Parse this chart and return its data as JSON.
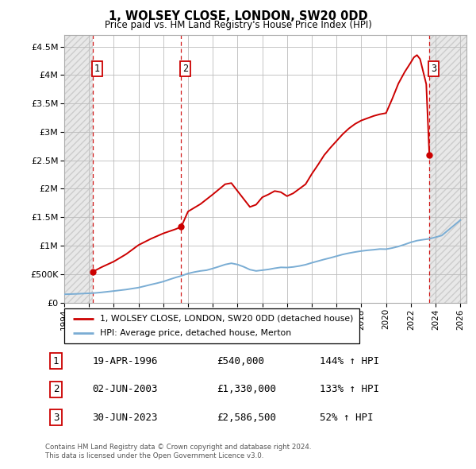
{
  "title": "1, WOLSEY CLOSE, LONDON, SW20 0DD",
  "subtitle": "Price paid vs. HM Land Registry's House Price Index (HPI)",
  "legend_line1": "1, WOLSEY CLOSE, LONDON, SW20 0DD (detached house)",
  "legend_line2": "HPI: Average price, detached house, Merton",
  "footer1": "Contains HM Land Registry data © Crown copyright and database right 2024.",
  "footer2": "This data is licensed under the Open Government Licence v3.0.",
  "sales": [
    {
      "num": 1,
      "date": "19-APR-1996",
      "price": 540000,
      "price_str": "£540,000",
      "pct": "144%",
      "dir": "↑"
    },
    {
      "num": 2,
      "date": "02-JUN-2003",
      "price": 1330000,
      "price_str": "£1,330,000",
      "pct": "133%",
      "dir": "↑"
    },
    {
      "num": 3,
      "date": "30-JUN-2023",
      "price": 2586500,
      "price_str": "£2,586,500",
      "pct": "52%",
      "dir": "↑"
    }
  ],
  "sale_years": [
    1996.3,
    2003.45,
    2023.5
  ],
  "sale_prices": [
    540000,
    1330000,
    2586500
  ],
  "hpi_color": "#7aadd4",
  "price_color": "#cc0000",
  "vline_color": "#cc0000",
  "ylim": [
    0,
    4700000
  ],
  "yticks": [
    0,
    500000,
    1000000,
    1500000,
    2000000,
    2500000,
    3000000,
    3500000,
    4000000,
    4500000
  ],
  "ytick_labels": [
    "£0",
    "£500K",
    "£1M",
    "£1.5M",
    "£2M",
    "£2.5M",
    "£3M",
    "£3.5M",
    "£4M",
    "£4.5M"
  ],
  "xlim_start": 1994.0,
  "xlim_end": 2026.5,
  "hatch_color": "#d8d8d8",
  "grid_color": "#bbbbbb",
  "hpi_data": {
    "years": [
      1994.0,
      1994.5,
      1995.0,
      1995.5,
      1996.0,
      1996.3,
      1996.5,
      1997.0,
      1997.5,
      1998.0,
      1998.5,
      1999.0,
      1999.5,
      2000.0,
      2000.5,
      2001.0,
      2001.5,
      2002.0,
      2002.5,
      2003.0,
      2003.45,
      2003.5,
      2004.0,
      2004.5,
      2005.0,
      2005.5,
      2006.0,
      2006.5,
      2007.0,
      2007.5,
      2008.0,
      2008.5,
      2009.0,
      2009.5,
      2010.0,
      2010.5,
      2011.0,
      2011.5,
      2012.0,
      2012.5,
      2013.0,
      2013.5,
      2014.0,
      2014.5,
      2015.0,
      2015.5,
      2016.0,
      2016.5,
      2017.0,
      2017.5,
      2018.0,
      2018.5,
      2019.0,
      2019.5,
      2020.0,
      2020.5,
      2021.0,
      2021.5,
      2022.0,
      2022.5,
      2023.0,
      2023.5,
      2024.0,
      2024.5,
      2025.0,
      2025.5,
      2026.0
    ],
    "values": [
      145000,
      148000,
      152000,
      157000,
      162000,
      165000,
      168000,
      178000,
      190000,
      202000,
      215000,
      228000,
      245000,
      262000,
      288000,
      315000,
      340000,
      368000,
      405000,
      440000,
      468000,
      472000,
      510000,
      535000,
      555000,
      568000,
      598000,
      632000,
      668000,
      690000,
      668000,
      628000,
      578000,
      555000,
      568000,
      582000,
      602000,
      618000,
      615000,
      625000,
      642000,
      665000,
      698000,
      728000,
      758000,
      785000,
      815000,
      845000,
      868000,
      888000,
      905000,
      918000,
      928000,
      940000,
      938000,
      958000,
      985000,
      1020000,
      1058000,
      1088000,
      1105000,
      1120000,
      1148000,
      1178000,
      1268000,
      1358000,
      1448000
    ]
  },
  "price_data": {
    "years": [
      1996.3,
      1997.0,
      1998.0,
      1999.0,
      2000.0,
      2001.0,
      2002.0,
      2003.0,
      2003.45,
      2004.0,
      2005.0,
      2006.0,
      2007.0,
      2007.5,
      2008.0,
      2008.5,
      2009.0,
      2009.5,
      2010.0,
      2010.5,
      2011.0,
      2011.5,
      2012.0,
      2012.5,
      2013.0,
      2013.5,
      2014.0,
      2014.5,
      2015.0,
      2015.5,
      2016.0,
      2016.5,
      2017.0,
      2017.5,
      2018.0,
      2018.5,
      2019.0,
      2019.5,
      2020.0,
      2020.5,
      2021.0,
      2021.5,
      2022.0,
      2022.25,
      2022.5,
      2022.75,
      2023.0,
      2023.25,
      2023.5
    ],
    "values": [
      540000,
      620000,
      720000,
      850000,
      1010000,
      1120000,
      1215000,
      1290000,
      1330000,
      1600000,
      1730000,
      1900000,
      2080000,
      2100000,
      1960000,
      1820000,
      1680000,
      1720000,
      1850000,
      1900000,
      1960000,
      1940000,
      1870000,
      1920000,
      2000000,
      2080000,
      2260000,
      2420000,
      2590000,
      2720000,
      2840000,
      2960000,
      3060000,
      3140000,
      3200000,
      3240000,
      3280000,
      3310000,
      3330000,
      3580000,
      3850000,
      4050000,
      4220000,
      4310000,
      4350000,
      4280000,
      4060000,
      3840000,
      2586500
    ]
  }
}
